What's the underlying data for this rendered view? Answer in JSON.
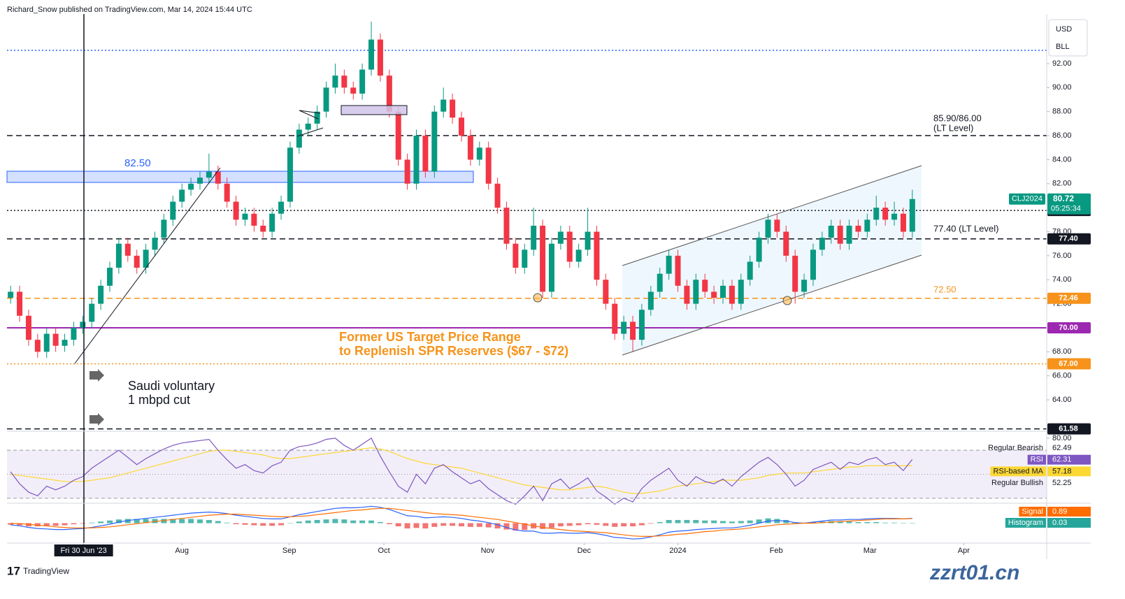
{
  "header": "Richard_Snow published on TradingView.com, Mar 14, 2024 15:44 UTC",
  "currency": "USD",
  "unit": "BLL",
  "footer": "TradingView",
  "watermark": "zzrt01.cn",
  "annotations": {
    "zone": "82.50",
    "lt_upper": [
      "85.90/86.00",
      "(LT Level)"
    ],
    "lt_lower": "77.40 (LT Level)",
    "support": "72.50",
    "spr": [
      "Former US Target Price Range",
      "to Replenish SPR Reserves ($67 - $72)"
    ],
    "saudi": [
      "Saudi voluntary",
      "1 mbpd cut"
    ]
  },
  "chart_data": {
    "type": "candlestick",
    "up_color": "#089981",
    "down_color": "#f23645",
    "xlim": [
      -0.4,
      114.9
    ],
    "xticks": [
      {
        "value": 8.1,
        "label": "Fri 30 Jun '23",
        "highlight": true
      },
      {
        "value": 19,
        "label": "Aug"
      },
      {
        "value": 30.9,
        "label": "Sep"
      },
      {
        "value": 41.4,
        "label": "Oct"
      },
      {
        "value": 52.9,
        "label": "Nov"
      },
      {
        "value": 63.6,
        "label": "Dec"
      },
      {
        "value": 74,
        "label": "2024"
      },
      {
        "value": 84.9,
        "label": "Feb"
      },
      {
        "value": 95.3,
        "label": "Mar"
      },
      {
        "value": 105.7,
        "label": "Apr"
      }
    ],
    "ylim": [
      61.5,
      96.13
    ],
    "yticks": [
      {
        "value": 64,
        "label": "64.00"
      },
      {
        "value": 66,
        "label": "66.00"
      },
      {
        "value": 68,
        "label": "68.00"
      },
      {
        "value": 72,
        "label": "72.00"
      },
      {
        "value": 74,
        "label": "74.00"
      },
      {
        "value": 76,
        "label": "76.00"
      },
      {
        "value": 78,
        "label": "78.00"
      },
      {
        "value": 82,
        "label": "82.00"
      },
      {
        "value": 84,
        "label": "84.00"
      },
      {
        "value": 86,
        "label": "86.00"
      },
      {
        "value": 88,
        "label": "88.00"
      },
      {
        "value": 90,
        "label": "90.00"
      },
      {
        "value": 92,
        "label": "92.00"
      }
    ],
    "ohlc": [
      [
        72.5,
        73.5,
        72,
        73
      ],
      [
        73,
        73.5,
        70.5,
        71
      ],
      [
        71,
        71.5,
        68.5,
        69
      ],
      [
        69,
        69.5,
        67.5,
        68
      ],
      [
        68,
        70,
        67.5,
        69.5
      ],
      [
        69.5,
        70,
        68,
        68.5
      ],
      [
        68.5,
        69.5,
        68,
        69
      ],
      [
        69,
        70.5,
        68.5,
        70
      ],
      [
        70,
        71,
        69.5,
        70.5
      ],
      [
        70.5,
        72.5,
        70,
        72
      ],
      [
        72,
        74,
        71.5,
        73.5
      ],
      [
        73.5,
        75.5,
        73,
        75
      ],
      [
        75,
        77.5,
        74.5,
        77
      ],
      [
        77,
        77.5,
        75.5,
        76
      ],
      [
        76,
        76.5,
        74.5,
        75
      ],
      [
        75,
        77,
        74.5,
        76.5
      ],
      [
        76.5,
        78,
        76,
        77.5
      ],
      [
        77.5,
        79.5,
        77,
        79
      ],
      [
        79,
        81,
        78.5,
        80.5
      ],
      [
        80.5,
        82,
        80,
        81.5
      ],
      [
        81.5,
        82.5,
        81,
        82
      ],
      [
        82,
        83,
        81.5,
        82.5
      ],
      [
        82.5,
        84.5,
        82,
        83
      ],
      [
        83,
        83.5,
        81.5,
        82
      ],
      [
        82,
        82.5,
        80,
        80.5
      ],
      [
        80.5,
        81,
        78.5,
        79
      ],
      [
        79,
        80,
        78.5,
        79.5
      ],
      [
        79.5,
        80,
        78,
        78.5
      ],
      [
        78.5,
        79,
        77.5,
        78
      ],
      [
        78,
        80,
        77.5,
        79.5
      ],
      [
        79.5,
        81,
        79,
        80.5
      ],
      [
        80.5,
        85.5,
        80,
        85
      ],
      [
        85,
        87,
        84.5,
        86.5
      ],
      [
        86.5,
        87.5,
        86,
        87
      ],
      [
        87,
        88.5,
        86.5,
        88
      ],
      [
        88,
        90.5,
        87.5,
        90
      ],
      [
        90,
        92,
        89.5,
        91
      ],
      [
        91,
        91.5,
        89.5,
        90
      ],
      [
        90,
        90.5,
        89,
        89.5
      ],
      [
        89.5,
        92,
        89,
        91.5
      ],
      [
        91.5,
        95.5,
        91,
        94
      ],
      [
        94,
        94.5,
        90.5,
        91
      ],
      [
        91,
        91.5,
        87.5,
        88
      ],
      [
        88,
        88.5,
        83.5,
        84
      ],
      [
        84,
        84.5,
        81.5,
        82
      ],
      [
        82,
        86.5,
        81.5,
        86
      ],
      [
        86,
        86.5,
        82.5,
        83
      ],
      [
        83,
        88.5,
        82.5,
        88
      ],
      [
        88,
        90,
        87.5,
        89
      ],
      [
        89,
        89.5,
        87,
        87.5
      ],
      [
        87.5,
        88,
        85.5,
        86
      ],
      [
        86,
        86.5,
        83.5,
        84
      ],
      [
        84,
        85.5,
        83.5,
        85
      ],
      [
        85,
        85.5,
        81.5,
        82
      ],
      [
        82,
        82.5,
        79.5,
        80
      ],
      [
        80,
        80.5,
        76.5,
        77
      ],
      [
        77,
        77.5,
        74.5,
        75
      ],
      [
        75,
        77,
        74.5,
        76.5
      ],
      [
        76.5,
        80,
        76,
        78.5
      ],
      [
        78.5,
        79,
        72.5,
        73
      ],
      [
        73,
        77.5,
        72.5,
        77
      ],
      [
        77,
        78.5,
        76.5,
        78
      ],
      [
        78,
        78.5,
        75,
        75.5
      ],
      [
        75.5,
        77,
        75,
        76.5
      ],
      [
        76.5,
        80,
        76,
        78
      ],
      [
        78,
        78.5,
        73.5,
        74
      ],
      [
        74,
        74.5,
        71.5,
        72
      ],
      [
        72,
        72.5,
        69,
        69.5
      ],
      [
        69.5,
        71,
        69,
        70.5
      ],
      [
        70.5,
        71,
        68,
        69
      ],
      [
        69,
        72,
        68.5,
        71.5
      ],
      [
        71.5,
        73.5,
        71,
        73
      ],
      [
        73,
        75,
        72.5,
        74.5
      ],
      [
        74.5,
        76.5,
        74,
        76
      ],
      [
        76,
        76.5,
        73,
        73.5
      ],
      [
        73.5,
        74,
        71.5,
        72
      ],
      [
        72,
        74.5,
        71.5,
        74
      ],
      [
        74,
        74.5,
        72.5,
        73
      ],
      [
        73,
        73.5,
        72,
        72.5
      ],
      [
        72.5,
        74,
        72,
        73.5
      ],
      [
        73.5,
        74,
        71.5,
        72
      ],
      [
        72,
        74.5,
        71.5,
        74
      ],
      [
        74,
        76,
        73.5,
        75.5
      ],
      [
        75.5,
        78,
        75,
        77.5
      ],
      [
        77.5,
        79.5,
        77,
        79
      ],
      [
        79,
        79.5,
        77.5,
        78
      ],
      [
        78,
        78.5,
        75.5,
        76
      ],
      [
        76,
        76.5,
        72,
        73
      ],
      [
        73,
        74.5,
        72.5,
        74
      ],
      [
        74,
        77,
        73.5,
        76.5
      ],
      [
        76.5,
        78,
        76,
        77.5
      ],
      [
        77.5,
        79,
        77,
        78.5
      ],
      [
        78.5,
        79,
        76.5,
        77
      ],
      [
        77,
        79,
        76.5,
        78.5
      ],
      [
        78.5,
        79,
        77.5,
        78
      ],
      [
        78,
        79.5,
        77.5,
        79
      ],
      [
        79,
        81,
        78.5,
        80
      ],
      [
        80,
        80.5,
        78.5,
        79
      ],
      [
        79,
        80.5,
        78.5,
        79.5
      ],
      [
        79.5,
        80,
        77.5,
        78
      ],
      [
        78,
        81.5,
        77.5,
        80.72
      ]
    ],
    "last": {
      "symbol": "CLJ2024",
      "countdown": "05:25:34"
    },
    "levels": [
      {
        "value": 93.1,
        "color": "#2962ff",
        "style": "dotted"
      },
      {
        "value": 86,
        "color": "#131722",
        "style": "dashed"
      },
      {
        "value": 79.77,
        "color": "#131722",
        "style": "dotted",
        "tag": true
      },
      {
        "value": 77.4,
        "label": "77.40",
        "color": "#131722",
        "style": "dashed",
        "tag": true
      },
      {
        "value": 72.46,
        "color": "#f7931a",
        "style": "dashed",
        "tag": true
      },
      {
        "value": 70,
        "label": "70.00",
        "color": "#9c27b0",
        "style": "solid",
        "tag": true
      },
      {
        "value": 67,
        "label": "67.00",
        "color": "#f7931a",
        "style": "dotted",
        "tag": true
      },
      {
        "value": 61.58,
        "color": "#131722",
        "style": "dashed",
        "tag": true
      }
    ],
    "rsi": {
      "ylim": [
        27,
        84
      ],
      "yticks": [
        {
          "value": 80,
          "label": "80.00"
        }
      ],
      "bands": [
        70,
        50,
        30
      ],
      "series": [
        {
          "name": "RSI",
          "color": "#7e57c2",
          "values": [
            52,
            42,
            35,
            32,
            40,
            37,
            40,
            45,
            48,
            55,
            60,
            65,
            70,
            64,
            58,
            63,
            67,
            71,
            74,
            76,
            77,
            78,
            79,
            70,
            62,
            55,
            58,
            53,
            51,
            57,
            60,
            70,
            73,
            74,
            76,
            79,
            80,
            74,
            70,
            75,
            80,
            65,
            52,
            40,
            35,
            50,
            42,
            55,
            58,
            52,
            47,
            42,
            45,
            38,
            33,
            28,
            25,
            32,
            40,
            28,
            42,
            46,
            38,
            42,
            47,
            36,
            31,
            25,
            30,
            27,
            38,
            45,
            50,
            55,
            45,
            40,
            48,
            44,
            42,
            46,
            40,
            48,
            54,
            60,
            64,
            58,
            50,
            40,
            45,
            54,
            57,
            60,
            54,
            60,
            58,
            62,
            64,
            58,
            60,
            53,
            62.31
          ]
        },
        {
          "name": "RSI-based MA",
          "color": "#fdd835",
          "values": [
            50,
            49,
            48,
            47,
            46,
            45,
            44,
            44,
            44,
            45,
            46,
            47,
            49,
            51,
            53,
            55,
            57,
            59,
            61,
            63,
            65,
            67,
            69,
            70,
            70,
            69,
            68,
            67,
            66,
            64,
            63,
            63,
            64,
            65,
            66,
            67,
            68,
            69,
            70,
            71,
            72,
            71,
            69,
            66,
            63,
            61,
            59,
            58,
            57,
            56,
            55,
            53,
            51,
            49,
            47,
            45,
            43,
            41,
            40,
            39,
            38,
            37,
            37,
            38,
            39,
            40,
            39,
            37,
            35,
            34,
            34,
            35,
            36,
            38,
            40,
            41,
            42,
            43,
            44,
            45,
            45,
            45,
            46,
            47,
            49,
            50,
            51,
            51,
            51,
            52,
            53,
            54,
            55,
            56,
            56,
            57,
            57,
            57,
            57,
            57,
            57.18
          ]
        }
      ],
      "divergences": [
        {
          "name": "Regular Bearish",
          "value": 62.49
        },
        {
          "name": "Regular Bullish",
          "value": 52.25
        }
      ]
    },
    "macd": {
      "ylim": [
        -3.5,
        3.5
      ],
      "series": [
        {
          "color": "#2962ff",
          "values": [
            -0.3,
            -0.5,
            -0.8,
            -1.0,
            -1.1,
            -1.2,
            -1.2,
            -1.1,
            -1.0,
            -0.8,
            -0.5,
            -0.2,
            0.2,
            0.5,
            0.7,
            0.9,
            1.1,
            1.3,
            1.5,
            1.7,
            1.9,
            2.0,
            2.1,
            2.0,
            1.8,
            1.5,
            1.3,
            1.1,
            0.9,
            0.8,
            0.8,
            1.2,
            1.6,
            1.9,
            2.2,
            2.5,
            2.8,
            2.9,
            2.9,
            3.0,
            3.2,
            3.0,
            2.6,
            2.0,
            1.4,
            1.3,
            1.0,
            1.1,
            1.2,
            1.1,
            0.9,
            0.6,
            0.4,
            0.1,
            -0.3,
            -0.8,
            -1.3,
            -1.5,
            -1.5,
            -1.9,
            -1.9,
            -1.8,
            -1.9,
            -1.9,
            -1.8,
            -2.0,
            -2.3,
            -2.7,
            -2.8,
            -3.0,
            -2.9,
            -2.6,
            -2.2,
            -1.7,
            -1.5,
            -1.4,
            -1.2,
            -1.1,
            -1.0,
            -0.9,
            -0.9,
            -0.7,
            -0.4,
            0.0,
            0.4,
            0.5,
            0.4,
            0.1,
            0.0,
            0.2,
            0.4,
            0.6,
            0.6,
            0.7,
            0.7,
            0.8,
            0.9,
            0.9,
            0.9,
            0.8,
            0.92
          ]
        },
        {
          "name": "Signal",
          "color": "#ff6d00",
          "values": [
            0.0,
            -0.1,
            -0.2,
            -0.4,
            -0.5,
            -0.7,
            -0.8,
            -0.9,
            -0.9,
            -0.9,
            -0.8,
            -0.7,
            -0.5,
            -0.3,
            -0.1,
            0.1,
            0.3,
            0.5,
            0.7,
            0.9,
            1.1,
            1.3,
            1.5,
            1.6,
            1.7,
            1.7,
            1.6,
            1.5,
            1.4,
            1.3,
            1.2,
            1.2,
            1.3,
            1.4,
            1.6,
            1.8,
            2.0,
            2.2,
            2.4,
            2.5,
            2.7,
            2.8,
            2.8,
            2.6,
            2.4,
            2.2,
            2.0,
            1.8,
            1.7,
            1.6,
            1.5,
            1.3,
            1.1,
            0.9,
            0.7,
            0.4,
            0.1,
            -0.2,
            -0.5,
            -0.8,
            -1.0,
            -1.2,
            -1.4,
            -1.5,
            -1.6,
            -1.7,
            -1.8,
            -2.0,
            -2.2,
            -2.4,
            -2.5,
            -2.5,
            -2.4,
            -2.3,
            -2.1,
            -2.0,
            -1.8,
            -1.6,
            -1.5,
            -1.3,
            -1.2,
            -1.1,
            -0.9,
            -0.7,
            -0.5,
            -0.3,
            -0.2,
            -0.1,
            0.0,
            0.0,
            0.1,
            0.2,
            0.3,
            0.4,
            0.5,
            0.6,
            0.7,
            0.8,
            0.8,
            0.8,
            0.89
          ]
        }
      ],
      "histogram": {
        "name": "Histogram",
        "colors": [
          "#26a69a",
          "#ef5350"
        ],
        "values": [
          -0.3,
          -0.4,
          -0.6,
          -0.6,
          -0.6,
          -0.5,
          -0.4,
          -0.2,
          -0.1,
          0.1,
          0.3,
          0.5,
          0.7,
          0.8,
          0.8,
          0.8,
          0.8,
          0.8,
          0.8,
          0.8,
          0.8,
          0.7,
          0.6,
          0.4,
          0.1,
          -0.2,
          -0.3,
          -0.4,
          -0.5,
          -0.5,
          -0.4,
          0,
          0.3,
          0.5,
          0.6,
          0.7,
          0.8,
          0.7,
          0.5,
          0.5,
          0.5,
          0.2,
          -0.2,
          -0.6,
          -1.0,
          -0.9,
          -1.0,
          -0.7,
          -0.5,
          -0.5,
          -0.6,
          -0.7,
          -0.7,
          -0.8,
          -1.0,
          -1.2,
          -1.4,
          -1.3,
          -1.0,
          -1.1,
          -0.9,
          -0.6,
          -0.5,
          -0.4,
          -0.2,
          -0.3,
          -0.5,
          -0.7,
          -0.6,
          -0.6,
          -0.4,
          -0.1,
          0.2,
          0.6,
          0.6,
          0.6,
          0.6,
          0.5,
          0.5,
          0.4,
          0.3,
          0.4,
          0.5,
          0.7,
          0.9,
          0.8,
          0.6,
          0.2,
          0.0,
          0.2,
          0.3,
          0.4,
          0.3,
          0.3,
          0.2,
          0.2,
          0.2,
          0.1,
          0.1,
          0.0,
          0.03
        ]
      }
    }
  }
}
